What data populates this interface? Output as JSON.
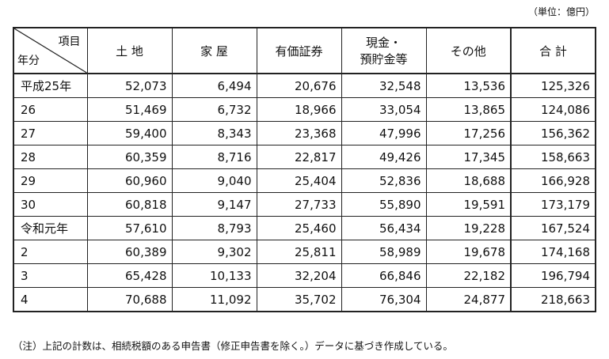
{
  "unit_label": "（単位：億円）",
  "header": {
    "corner_top": "項目",
    "corner_bottom": "年分",
    "columns": [
      "土 地",
      "家 屋",
      "有価証券",
      "現金・",
      "その他",
      "合 計"
    ],
    "cash_second_line": "預貯金等"
  },
  "rows": [
    {
      "year": "平成25年",
      "values": [
        "52,073",
        "6,494",
        "20,676",
        "32,548",
        "13,536",
        "125,326"
      ]
    },
    {
      "year": "26",
      "values": [
        "51,469",
        "6,732",
        "18,966",
        "33,054",
        "13,865",
        "124,086"
      ]
    },
    {
      "year": "27",
      "values": [
        "59,400",
        "8,343",
        "23,368",
        "47,996",
        "17,256",
        "156,362"
      ]
    },
    {
      "year": "28",
      "values": [
        "60,359",
        "8,716",
        "22,817",
        "49,426",
        "17,345",
        "158,663"
      ]
    },
    {
      "year": "29",
      "values": [
        "60,960",
        "9,040",
        "25,404",
        "52,836",
        "18,688",
        "166,928"
      ]
    },
    {
      "year": "30",
      "values": [
        "60,818",
        "9,147",
        "27,733",
        "55,890",
        "19,591",
        "173,179"
      ]
    },
    {
      "year": "令和元年",
      "values": [
        "57,610",
        "8,793",
        "25,460",
        "56,434",
        "19,228",
        "167,524"
      ]
    },
    {
      "year": "2",
      "values": [
        "60,389",
        "9,302",
        "25,811",
        "58,989",
        "19,678",
        "174,168"
      ]
    },
    {
      "year": "3",
      "values": [
        "65,428",
        "10,133",
        "32,204",
        "66,846",
        "22,182",
        "196,794"
      ]
    },
    {
      "year": "4",
      "values": [
        "70,688",
        "11,092",
        "35,702",
        "76,304",
        "24,877",
        "218,663"
      ]
    }
  ],
  "note": "（注）上記の計数は、相続税額のある申告書（修正申告書を除く。）データに基づき作成している。"
}
